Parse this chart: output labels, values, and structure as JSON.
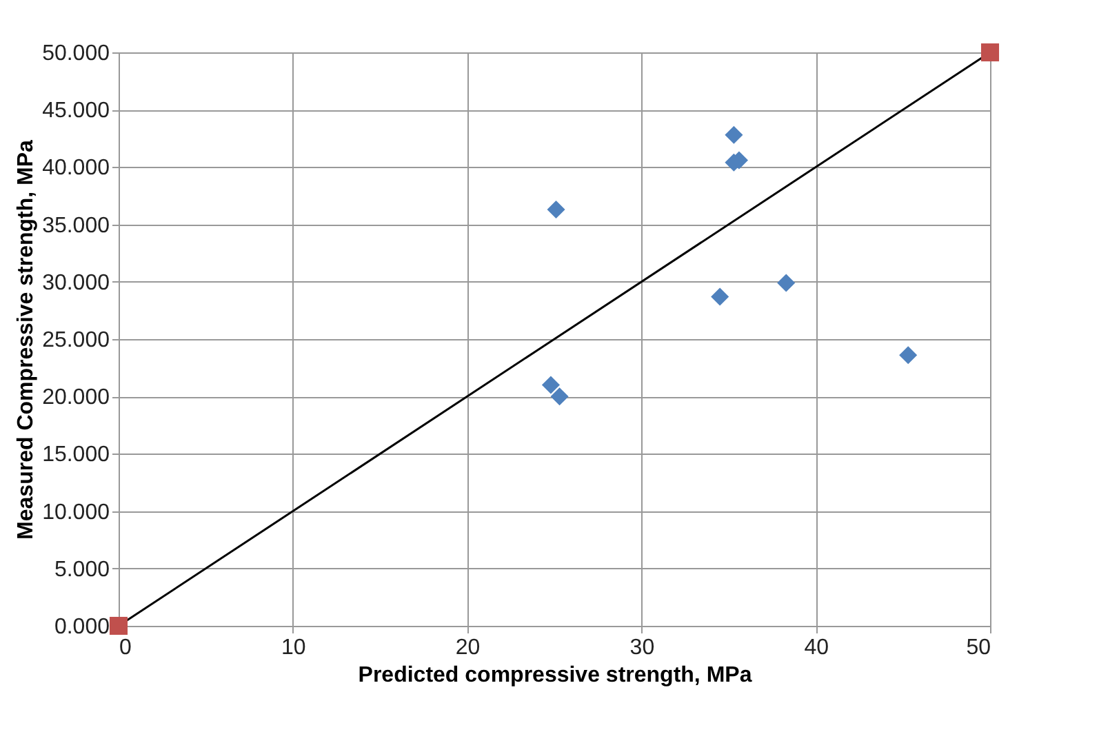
{
  "chart_data": {
    "type": "scatter",
    "xlabel": "Predicted compressive strength, MPa",
    "ylabel": "Measured Compressive strength, MPa",
    "xlim": [
      0,
      50
    ],
    "ylim": [
      0,
      50
    ],
    "xticks": [
      0,
      10,
      20,
      30,
      40,
      50
    ],
    "yticks": [
      {
        "value": 0,
        "label": "0.000"
      },
      {
        "value": 5,
        "label": "5.000"
      },
      {
        "value": 10,
        "label": "10.000"
      },
      {
        "value": 15,
        "label": "15.000"
      },
      {
        "value": 20,
        "label": "20.000"
      },
      {
        "value": 25,
        "label": "25.000"
      },
      {
        "value": 30,
        "label": "30.000"
      },
      {
        "value": 35,
        "label": "35.000"
      },
      {
        "value": 40,
        "label": "40.000"
      },
      {
        "value": 45,
        "label": "45.000"
      },
      {
        "value": 50,
        "label": "50.000"
      }
    ],
    "grid": true,
    "series": [
      {
        "marker": "diamond",
        "color": "#4f81bd",
        "x": [
          25.1,
          35.3,
          35.3,
          35.6,
          34.5,
          38.3,
          45.3,
          24.8,
          25.3
        ],
        "values": [
          36.3,
          42.8,
          40.4,
          40.6,
          28.7,
          29.9,
          23.6,
          21.0,
          20.0
        ]
      },
      {
        "type": "line",
        "marker": "none",
        "color": "#000000",
        "x": [
          0,
          50
        ],
        "values": [
          0,
          50
        ]
      },
      {
        "marker": "square",
        "color": "#c0504d",
        "x": [
          0,
          50
        ],
        "values": [
          0,
          50
        ]
      }
    ]
  }
}
